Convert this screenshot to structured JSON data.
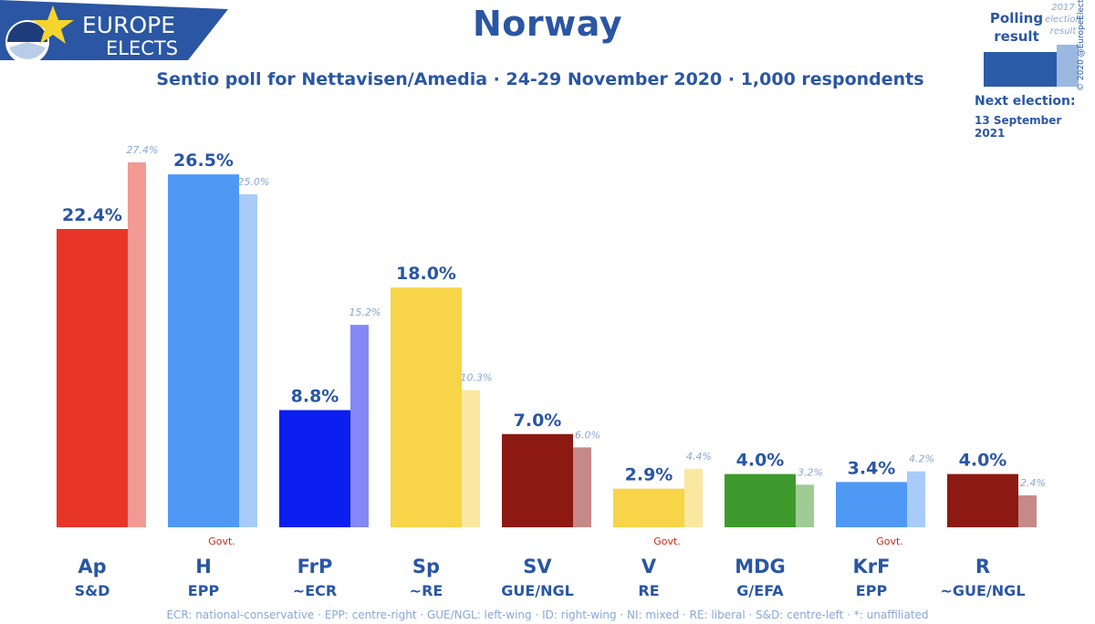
{
  "logo": {
    "line1": "EUROPE",
    "line2": "ELECTS"
  },
  "header": {
    "title": "Norway",
    "subtitle": "Sentio poll for Nettavisen/Amedia · 24-29 November 2020 · 1,000 respondents"
  },
  "legend": {
    "poll_label_1": "Polling",
    "poll_label_2": "result",
    "prev_label_1": "2017",
    "prev_label_2": "election",
    "prev_label_3": "result",
    "next_label": "Next election:",
    "next_date": "13 September 2021",
    "copyright": "© 2020 @EuropeElects"
  },
  "footnote": "ECR: national-conservative · EPP: centre-right · GUE/NGL: left-wing · ID: right-wing · NI: mixed · RE: liberal · S&D: centre-left · *: unaffiliated",
  "chart_data": {
    "type": "bar",
    "title": "Norway",
    "categories": [
      "Ap",
      "H",
      "FrP",
      "Sp",
      "SV",
      "V",
      "MDG",
      "KrF",
      "R"
    ],
    "groups": [
      "S&D",
      "EPP",
      "~ECR",
      "~RE",
      "GUE/NGL",
      "RE",
      "G/EFA",
      "EPP",
      "~GUE/NGL"
    ],
    "govt": [
      false,
      true,
      false,
      false,
      false,
      true,
      false,
      true,
      false
    ],
    "govt_label": "Govt.",
    "series": [
      {
        "name": "Polling result",
        "values": [
          22.4,
          26.5,
          8.8,
          18.0,
          7.0,
          2.9,
          4.0,
          3.4,
          4.0
        ]
      },
      {
        "name": "2017 election result",
        "values": [
          27.4,
          25.0,
          15.2,
          10.3,
          6.0,
          4.4,
          3.2,
          4.2,
          2.4
        ]
      }
    ],
    "value_labels": [
      "22.4%",
      "26.5%",
      "8.8%",
      "18.0%",
      "7.0%",
      "2.9%",
      "4.0%",
      "3.4%",
      "4.0%"
    ],
    "prev_labels": [
      "27.4%",
      "25.0%",
      "15.2%",
      "10.3%",
      "6.0%",
      "4.4%",
      "3.2%",
      "4.2%",
      "2.4%"
    ],
    "colors": [
      "#e8352a",
      "#4f99f5",
      "#0a1ff0",
      "#f7d448",
      "#8d1a12",
      "#f7d448",
      "#3e9a2c",
      "#4f99f5",
      "#8d1a12"
    ],
    "prev_colors": [
      "#f39a94",
      "#a8cbfa",
      "#8488f7",
      "#fbe8a0",
      "#c6898a",
      "#fbe8a0",
      "#9fcb95",
      "#a8cbfa",
      "#c6898a"
    ],
    "ylim": [
      0,
      30
    ],
    "grid": false,
    "legend_position": "top-right"
  }
}
